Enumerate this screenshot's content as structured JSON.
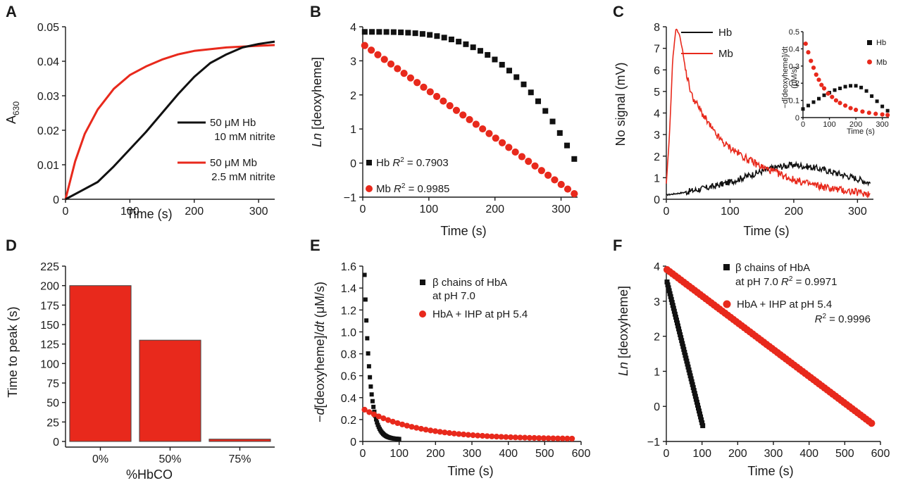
{
  "colors": {
    "black": "#111111",
    "red": "#e8291c",
    "bar_fill": "#e8291c",
    "bar_edge": "#444444"
  },
  "chart_data": [
    {
      "panel": "A",
      "type": "line",
      "ylabel_main": "A",
      "ylabel_sub": "630",
      "xlabel": "Time (s)",
      "xlim": [
        0,
        325
      ],
      "ylim": [
        0,
        0.05
      ],
      "xticks": [
        "0",
        "100",
        "200",
        "300"
      ],
      "yticks": [
        "0",
        "0.01",
        "0.02",
        "0.03",
        "0.04",
        "0.05"
      ],
      "legend_placement": "right",
      "series": [
        {
          "name_line1": "50 μM Hb",
          "name_line2": "10 mM nitrite",
          "color": "#111111",
          "x": [
            0,
            25,
            50,
            75,
            100,
            125,
            150,
            175,
            200,
            225,
            250,
            275,
            300,
            325
          ],
          "y": [
            0,
            0.0025,
            0.005,
            0.0095,
            0.0145,
            0.0195,
            0.025,
            0.0305,
            0.0355,
            0.0395,
            0.042,
            0.044,
            0.045,
            0.0457
          ]
        },
        {
          "name_line1": "50 μM Mb",
          "name_line2": "2.5 mM nitrite",
          "color": "#e8291c",
          "x": [
            0,
            15,
            30,
            50,
            75,
            100,
            125,
            150,
            175,
            200,
            250,
            300,
            325
          ],
          "y": [
            0,
            0.011,
            0.019,
            0.026,
            0.032,
            0.036,
            0.0385,
            0.0405,
            0.042,
            0.043,
            0.044,
            0.0445,
            0.0447
          ]
        }
      ]
    },
    {
      "panel": "B",
      "type": "scatter",
      "ylabel_italic": "Ln",
      "ylabel_rest": " [deoxyheme]",
      "xlabel": "Time (s)",
      "xlim": [
        0,
        325
      ],
      "ylim": [
        -1,
        4
      ],
      "xticks": [
        "0",
        "100",
        "200",
        "300"
      ],
      "yticks": [
        "−1",
        "0",
        "1",
        "2",
        "3",
        "4"
      ],
      "legend_placement": "bottom-left",
      "series": [
        {
          "name": "Hb",
          "r2_label": "R",
          "r2_sup": "2",
          "r2_value": " = 0.7903",
          "color": "#111111",
          "marker": "square",
          "model": "quadratic",
          "start": 3.85,
          "end": 0.12,
          "x_end": 320,
          "n": 30
        },
        {
          "name": "Mb",
          "r2_label": "R",
          "r2_sup": "2",
          "r2_value": " = 0.9985",
          "color": "#e8291c",
          "marker": "circle",
          "model": "linear",
          "start": 3.45,
          "end": -0.9,
          "x_end": 320,
          "n": 33
        }
      ]
    },
    {
      "panel": "C",
      "type": "line",
      "ylabel": "No signal (mV)",
      "xlabel": "Time (s)",
      "xlim": [
        0,
        325
      ],
      "ylim": [
        0,
        8
      ],
      "xticks": [
        "0",
        "100",
        "200",
        "300"
      ],
      "yticks": [
        "0",
        "1",
        "2",
        "3",
        "4",
        "5",
        "6",
        "7",
        "8"
      ],
      "legend_placement": "top",
      "series": [
        {
          "name": "Hb",
          "color": "#111111",
          "x": [
            0,
            25,
            50,
            75,
            100,
            125,
            150,
            175,
            200,
            225,
            250,
            275,
            300,
            320
          ],
          "y": [
            0.2,
            0.3,
            0.45,
            0.6,
            0.8,
            1.05,
            1.3,
            1.5,
            1.6,
            1.5,
            1.35,
            1.15,
            0.95,
            0.75
          ]
        },
        {
          "name": "Mb",
          "color": "#e8291c",
          "x": [
            0,
            5,
            10,
            15,
            20,
            25,
            30,
            40,
            50,
            60,
            75,
            90,
            100,
            125,
            150,
            175,
            200,
            225,
            250,
            275,
            300,
            320
          ],
          "y": [
            0.7,
            3.0,
            6.5,
            7.9,
            7.7,
            7.0,
            6.0,
            4.8,
            4.3,
            3.8,
            3.1,
            2.6,
            2.4,
            1.9,
            1.5,
            1.2,
            0.9,
            0.7,
            0.55,
            0.42,
            0.32,
            0.25
          ]
        }
      ],
      "inset": {
        "ylabel_line1": "−d[deoxyheme]/dt",
        "ylabel_line2": "(μM/s)",
        "xlabel": "Time (s)",
        "xlim": [
          0,
          325
        ],
        "ylim": [
          0,
          0.5
        ],
        "xticks": [
          "0",
          "100",
          "200",
          "300"
        ],
        "yticks": [
          "0",
          "0.1",
          "0.2",
          "0.3",
          "0.4",
          "0.5"
        ],
        "series": [
          {
            "name": "Hb",
            "color": "#111111",
            "marker": "square",
            "x": [
              0,
              20,
              40,
              60,
              80,
              100,
              120,
              140,
              160,
              180,
              200,
              220,
              240,
              260,
              280,
              300,
              320
            ],
            "y": [
              0.05,
              0.07,
              0.09,
              0.11,
              0.13,
              0.145,
              0.16,
              0.17,
              0.18,
              0.185,
              0.185,
              0.175,
              0.155,
              0.125,
              0.095,
              0.065,
              0.04
            ]
          },
          {
            "name": "Mb",
            "color": "#e8291c",
            "marker": "circle",
            "x": [
              10,
              20,
              30,
              40,
              50,
              60,
              70,
              80,
              95,
              110,
              125,
              140,
              160,
              180,
              200,
              225,
              250,
              275,
              300,
              320
            ],
            "y": [
              0.43,
              0.38,
              0.33,
              0.29,
              0.25,
              0.22,
              0.19,
              0.17,
              0.14,
              0.12,
              0.1,
              0.085,
              0.07,
              0.055,
              0.045,
              0.035,
              0.028,
              0.022,
              0.018,
              0.015
            ]
          }
        ]
      }
    },
    {
      "panel": "D",
      "type": "bar",
      "ylabel": "Time to peak (s)",
      "xlabel": "%HbCO",
      "ylim": [
        0,
        225
      ],
      "yticks": [
        "0",
        "25",
        "50",
        "75",
        "100",
        "125",
        "150",
        "175",
        "200",
        "225"
      ],
      "categories": [
        "0%",
        "50%",
        "75%"
      ],
      "values": [
        200,
        130,
        3
      ]
    },
    {
      "panel": "E",
      "type": "scatter",
      "ylabel_prefix": "−",
      "ylabel_italic1": "d",
      "ylabel_mid": "[deoxyheme]/",
      "ylabel_italic2": "dt",
      "ylabel_units": " (μM/s)",
      "xlabel": "Time (s)",
      "xlim": [
        0,
        600
      ],
      "ylim": [
        0,
        1.6
      ],
      "xticks": [
        "0",
        "100",
        "200",
        "300",
        "400",
        "500",
        "600"
      ],
      "yticks": [
        "0",
        "0.2",
        "0.4",
        "0.6",
        "0.8",
        "1.0",
        "1.2",
        "1.4",
        "1.6"
      ],
      "legend_placement": "top-right",
      "series": [
        {
          "name_line1": "β chains of HbA",
          "name_line2": "at pH 7.0",
          "color": "#111111",
          "marker": "square",
          "model": "decay",
          "a": 1.5,
          "tau": 15,
          "x_start": 5,
          "x_end": 100,
          "n": 40
        },
        {
          "name_line1": "HbA + IHP at pH 5.4",
          "color": "#e8291c",
          "marker": "circle",
          "model": "decay",
          "a": 0.27,
          "tau": 150,
          "x_start": 5,
          "x_end": 575,
          "n": 45
        }
      ]
    },
    {
      "panel": "F",
      "type": "scatter",
      "ylabel_italic": "Ln",
      "ylabel_rest": " [deoxyheme]",
      "xlabel": "Time (s)",
      "xlim": [
        0,
        600
      ],
      "ylim": [
        -1,
        4
      ],
      "xticks": [
        "0",
        "100",
        "200",
        "300",
        "400",
        "500",
        "600"
      ],
      "yticks": [
        "−1",
        "0",
        "1",
        "2",
        "3",
        "4"
      ],
      "legend_placement": "top-right",
      "series": [
        {
          "name_line1": "β chains of HbA",
          "name_line2": "at pH 7.0",
          "r2_label": "R",
          "r2_sup": "2",
          "r2_value": " = 0.9971",
          "color": "#111111",
          "marker": "square",
          "model": "linear",
          "x_start": 2,
          "x_end": 102,
          "start": 3.55,
          "end": -0.55,
          "n": 50
        },
        {
          "name_line1": "HbA + IHP at pH 5.4",
          "r2_label": "R",
          "r2_sup": "2",
          "r2_value": " = 0.9996",
          "color": "#e8291c",
          "marker": "circle",
          "model": "linear",
          "x_start": 2,
          "x_end": 575,
          "start": 3.9,
          "end": -0.48,
          "n": 75
        }
      ]
    }
  ]
}
